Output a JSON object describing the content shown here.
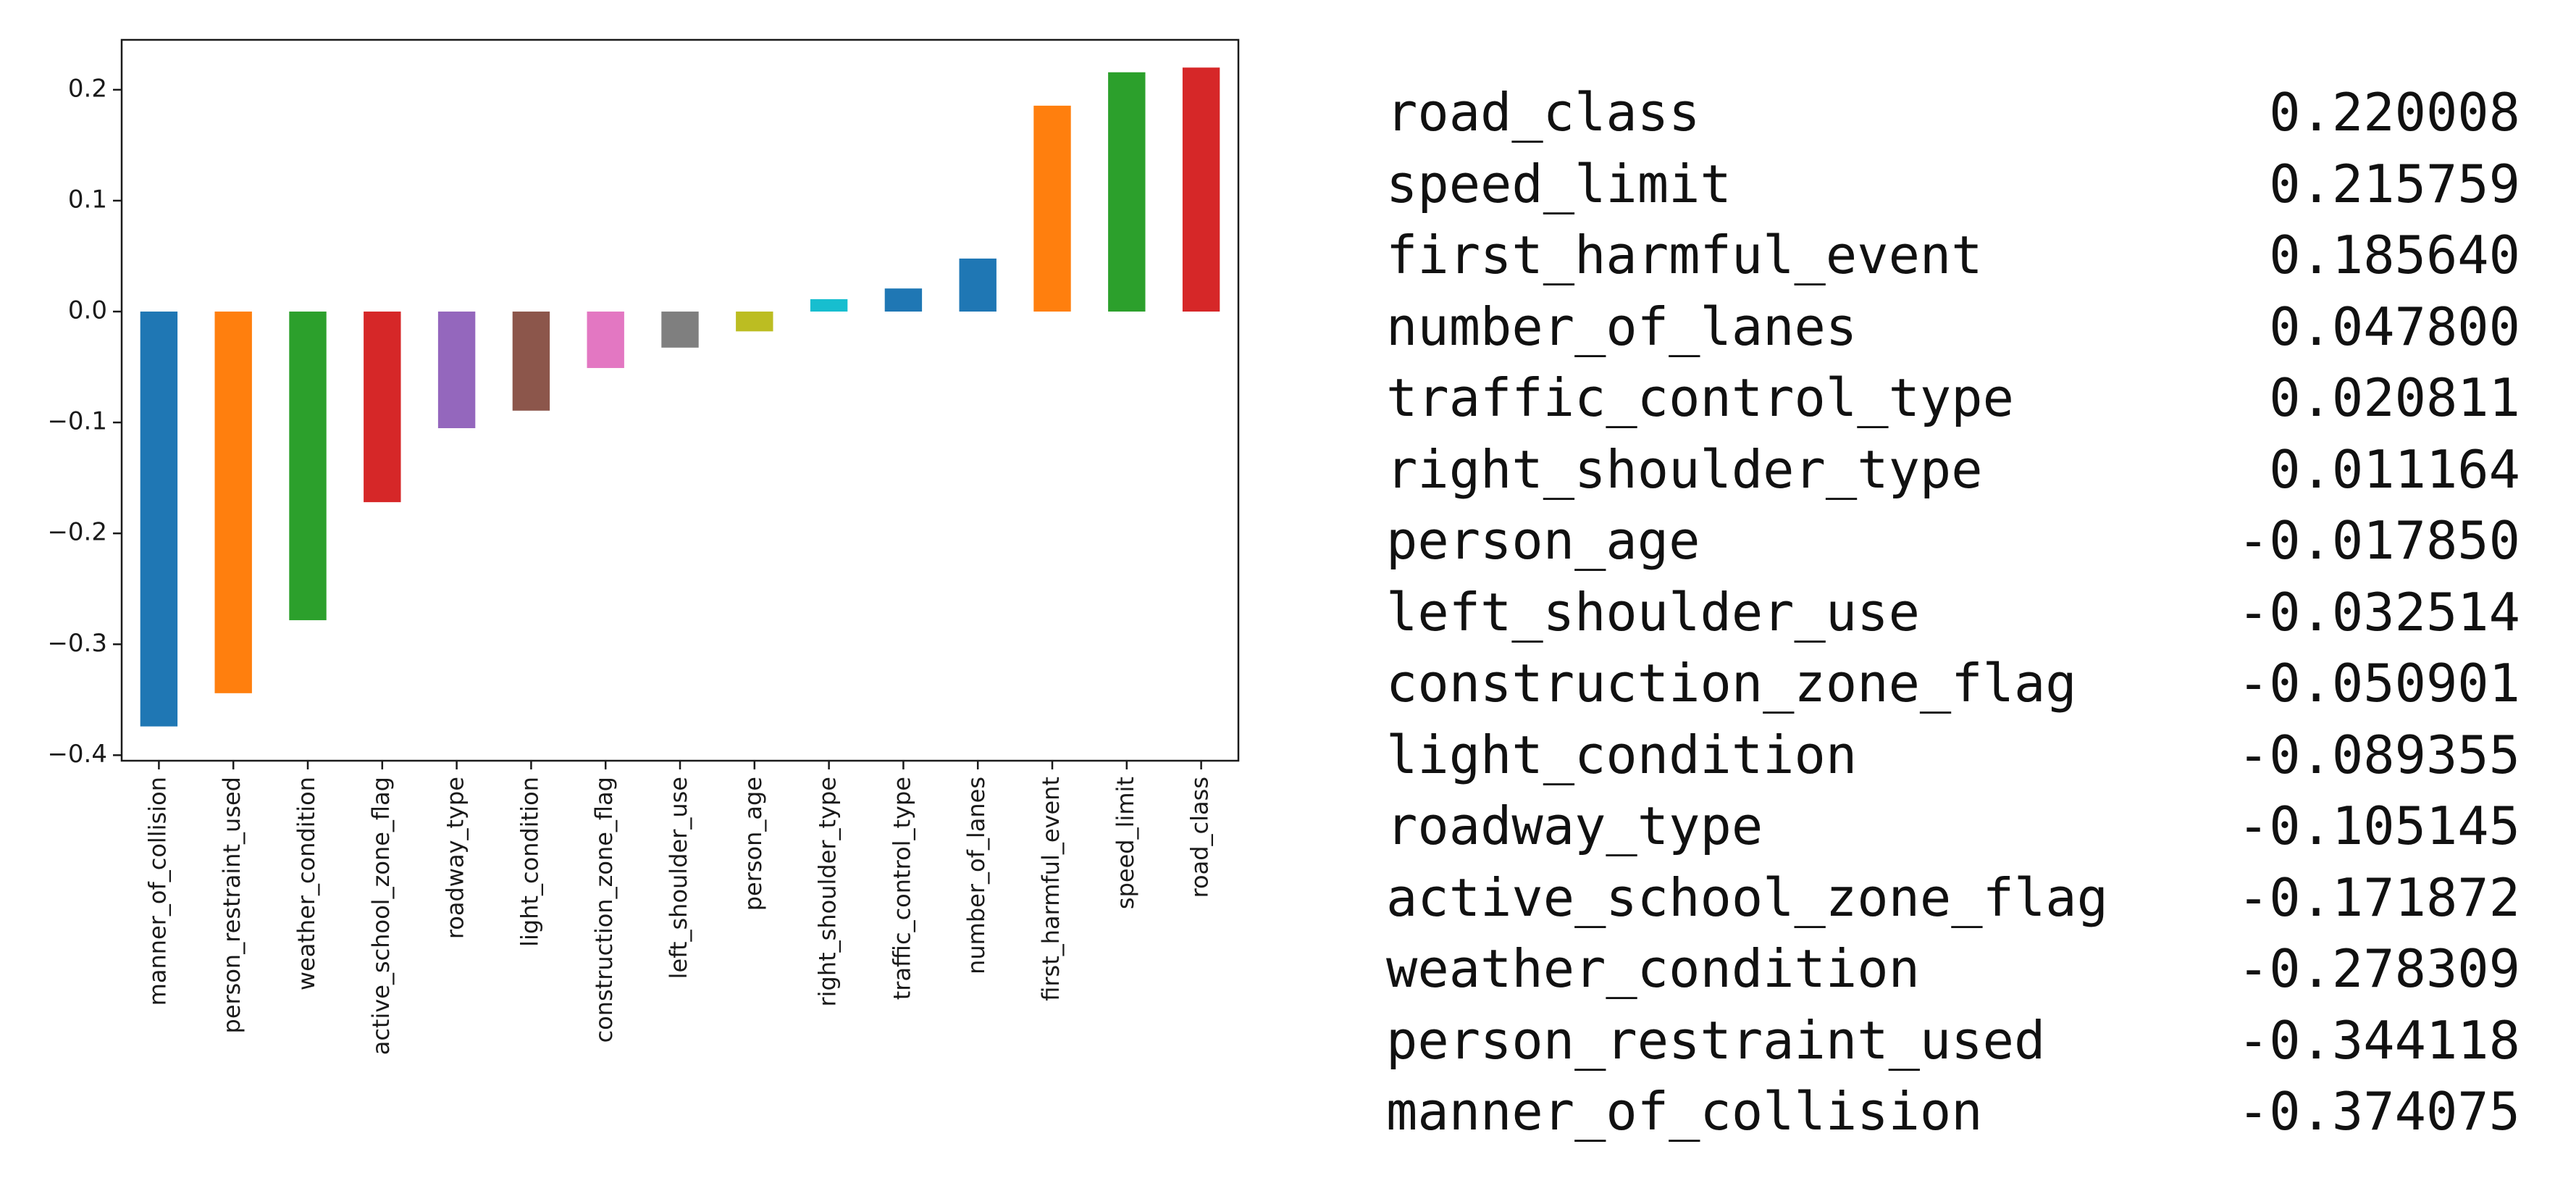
{
  "chart_data": {
    "type": "bar",
    "categories": [
      "manner_of_collision",
      "person_restraint_used",
      "weather_condition",
      "active_school_zone_flag",
      "roadway_type",
      "light_condition",
      "construction_zone_flag",
      "left_shoulder_use",
      "person_age",
      "right_shoulder_type",
      "traffic_control_type",
      "number_of_lanes",
      "first_harmful_event",
      "speed_limit",
      "road_class"
    ],
    "values": [
      -0.374075,
      -0.344118,
      -0.278309,
      -0.171872,
      -0.105145,
      -0.089355,
      -0.050901,
      -0.032514,
      -0.01785,
      0.011164,
      0.020811,
      0.0478,
      0.18564,
      0.215759,
      0.220008
    ],
    "colors": [
      "#1f77b4",
      "#ff7f0e",
      "#2ca02c",
      "#d62728",
      "#9467bd",
      "#8c564b",
      "#e377c2",
      "#7f7f7f",
      "#bcbd22",
      "#17becf",
      "#1f77b4",
      "#1f77b4",
      "#ff7f0e",
      "#2ca02c",
      "#d62728"
    ],
    "yticks": [
      0.2,
      0.1,
      0.0,
      -0.1,
      -0.2,
      -0.3,
      -0.4
    ],
    "ytick_labels": [
      "0.2",
      "0.1",
      "0.0",
      "−0.1",
      "−0.2",
      "−0.3",
      "−0.4"
    ],
    "ylim": [
      -0.405,
      0.245
    ],
    "title": "",
    "xlabel": "",
    "ylabel": "",
    "grid": false,
    "legend": "none"
  },
  "table": {
    "rows": [
      {
        "name": "road_class",
        "value": "0.220008"
      },
      {
        "name": "speed_limit",
        "value": "0.215759"
      },
      {
        "name": "first_harmful_event",
        "value": "0.185640"
      },
      {
        "name": "number_of_lanes",
        "value": "0.047800"
      },
      {
        "name": "traffic_control_type",
        "value": "0.020811"
      },
      {
        "name": "right_shoulder_type",
        "value": "0.011164"
      },
      {
        "name": "person_age",
        "value": "-0.017850"
      },
      {
        "name": "left_shoulder_use",
        "value": "-0.032514"
      },
      {
        "name": "construction_zone_flag",
        "value": "-0.050901"
      },
      {
        "name": "light_condition",
        "value": "-0.089355"
      },
      {
        "name": "roadway_type",
        "value": "-0.105145"
      },
      {
        "name": "active_school_zone_flag",
        "value": "-0.171872"
      },
      {
        "name": "weather_condition",
        "value": "-0.278309"
      },
      {
        "name": "person_restraint_used",
        "value": "-0.344118"
      },
      {
        "name": "manner_of_collision",
        "value": "-0.374075"
      }
    ]
  }
}
